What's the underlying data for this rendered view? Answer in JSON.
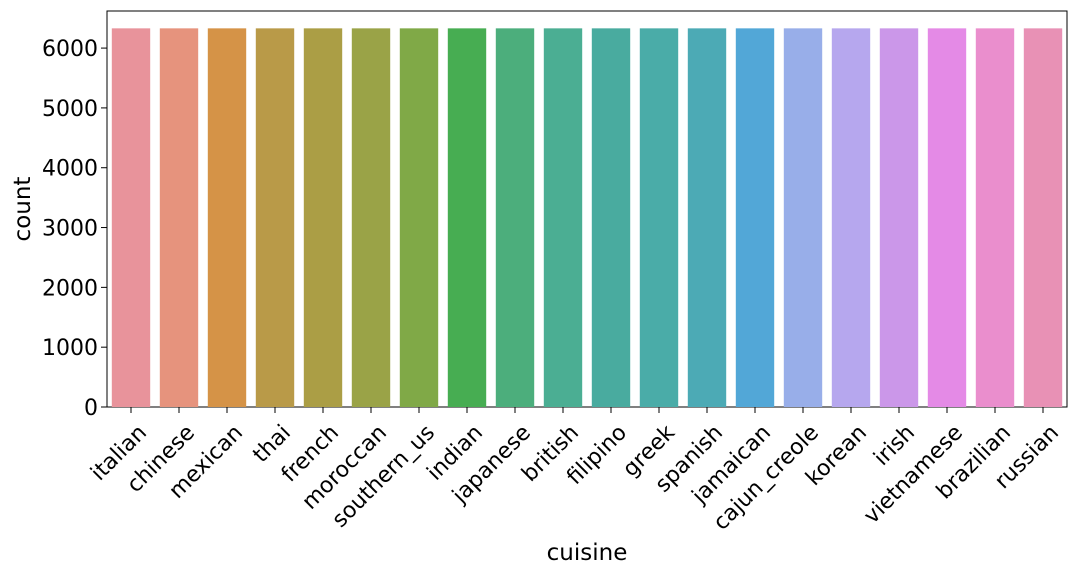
{
  "chart_data": {
    "type": "bar",
    "title": "",
    "xlabel": "cuisine",
    "ylabel": "count",
    "ylim": [
      0,
      6620
    ],
    "yticks": [
      0,
      1000,
      2000,
      3000,
      4000,
      5000,
      6000
    ],
    "grid": false,
    "legend": "none",
    "categories": [
      "italian",
      "chinese",
      "mexican",
      "thai",
      "french",
      "moroccan",
      "southern_us",
      "indian",
      "japanese",
      "british",
      "filipino",
      "greek",
      "spanish",
      "jamaican",
      "cajun_creole",
      "korean",
      "irish",
      "vietnamese",
      "brazilian",
      "russian"
    ],
    "values": [
      6330,
      6330,
      6330,
      6330,
      6330,
      6330,
      6330,
      6330,
      6330,
      6330,
      6330,
      6330,
      6330,
      6330,
      6330,
      6330,
      6330,
      6330,
      6330,
      6330
    ],
    "colors": [
      "#e8939b",
      "#e6937d",
      "#d59347",
      "#b99a48",
      "#ab9e45",
      "#9aa347",
      "#80a947",
      "#47ad52",
      "#4cae7c",
      "#4bae93",
      "#49ab9f",
      "#4aaca8",
      "#4caab5",
      "#52a7d7",
      "#98aee9",
      "#b6a7ee",
      "#cb97e9",
      "#e48ae6",
      "#ea8ecd",
      "#e891b5"
    ]
  }
}
